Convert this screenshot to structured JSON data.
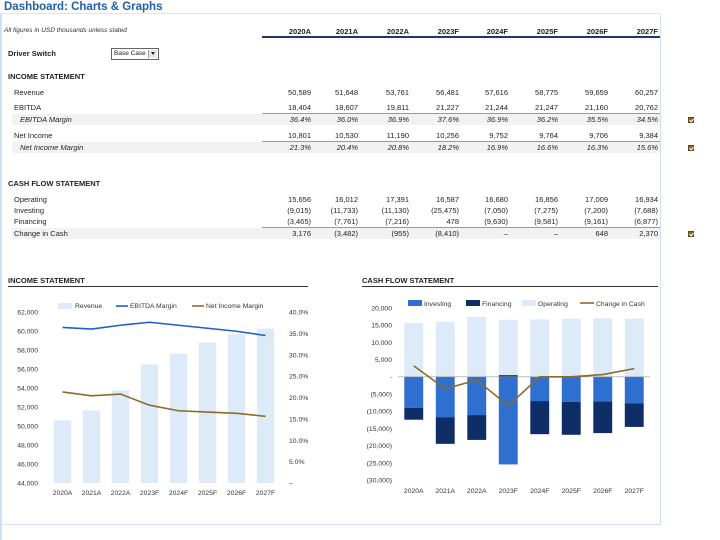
{
  "title": "Dashboard: Charts & Graphs",
  "note": "All figures in USD thousands unless stated",
  "years": [
    "2020A",
    "2021A",
    "2022A",
    "2023F",
    "2024F",
    "2025F",
    "2026F",
    "2027F"
  ],
  "driver": {
    "label": "Driver Switch",
    "value": "Base Case"
  },
  "income": {
    "heading": "INCOME STATEMENT",
    "rows": [
      {
        "label": "Revenue",
        "values": [
          "50,589",
          "51,648",
          "53,761",
          "56,481",
          "57,616",
          "58,775",
          "59,659",
          "60,257"
        ]
      },
      {
        "label": "EBITDA",
        "values": [
          "18,404",
          "18,607",
          "19,811",
          "21,227",
          "21,244",
          "21,247",
          "21,160",
          "20,762"
        ]
      },
      {
        "label": "EBITDA Margin",
        "values": [
          "36.4%",
          "36.0%",
          "36.9%",
          "37.6%",
          "36.9%",
          "36.2%",
          "35.5%",
          "34.5%"
        ]
      },
      {
        "label": "Net Income",
        "values": [
          "10,801",
          "10,530",
          "11,190",
          "10,256",
          "9,752",
          "9,764",
          "9,706",
          "9,384"
        ]
      },
      {
        "label": "Net Income Margin",
        "values": [
          "21.3%",
          "20.4%",
          "20.8%",
          "18.2%",
          "16.9%",
          "16.6%",
          "16.3%",
          "15.6%"
        ]
      }
    ]
  },
  "cashflow": {
    "heading": "CASH FLOW STATEMENT",
    "rows": [
      {
        "label": "Operating",
        "values": [
          "15,656",
          "16,012",
          "17,391",
          "16,587",
          "16,680",
          "16,856",
          "17,009",
          "16,934"
        ]
      },
      {
        "label": "Investing",
        "values": [
          "(9,015)",
          "(11,733)",
          "(11,130)",
          "(25,475)",
          "(7,050)",
          "(7,275)",
          "(7,200)",
          "(7,688)"
        ]
      },
      {
        "label": "Financing",
        "values": [
          "(3,465)",
          "(7,761)",
          "(7,216)",
          "478",
          "(9,630)",
          "(9,581)",
          "(9,161)",
          "(6,877)"
        ]
      },
      {
        "label": "Change in Cash",
        "values": [
          "3,176",
          "(3,482)",
          "(955)",
          "(8,410)",
          "–",
          "–",
          "648",
          "2,370"
        ]
      }
    ]
  },
  "colors": {
    "revenue_bar": "#ddeaf7",
    "ebitda_line": "#1f5fc8",
    "ni_line": "#8b6a2a",
    "operating_bar": "#ddeaf7",
    "investing_bar": "#2f6fd0",
    "financing_bar": "#0f2d66",
    "change_line": "#8b6a2a"
  },
  "chart_data": [
    {
      "type": "bar",
      "title": "INCOME STATEMENT",
      "categories": [
        "2020A",
        "2021A",
        "2022A",
        "2023F",
        "2024F",
        "2025F",
        "2026F",
        "2027F"
      ],
      "series": [
        {
          "name": "Revenue",
          "type": "bar",
          "axis": "left",
          "values": [
            50589,
            51648,
            53761,
            56481,
            57616,
            58775,
            59659,
            60257
          ]
        },
        {
          "name": "EBITDA Margin",
          "type": "line",
          "axis": "right",
          "values": [
            36.4,
            36.0,
            36.9,
            37.6,
            36.9,
            36.2,
            35.5,
            34.5
          ]
        },
        {
          "name": "Net Income Margin",
          "type": "line",
          "axis": "right",
          "values": [
            21.3,
            20.4,
            20.8,
            18.2,
            16.9,
            16.6,
            16.3,
            15.6
          ]
        }
      ],
      "ylim": [
        44000,
        62000
      ],
      "yticks": [
        "62,000",
        "60,000",
        "58,000",
        "56,000",
        "54,000",
        "52,000",
        "50,000",
        "48,000",
        "46,000",
        "44,000"
      ],
      "y2lim": [
        0,
        40
      ],
      "y2ticks": [
        "40.0%",
        "35.0%",
        "30.0%",
        "25.0%",
        "20.0%",
        "15.0%",
        "10.0%",
        "5.0%",
        "–"
      ],
      "legend": "top"
    },
    {
      "type": "bar",
      "title": "CASH FLOW STATEMENT",
      "categories": [
        "2020A",
        "2021A",
        "2022A",
        "2023F",
        "2024F",
        "2025F",
        "2026F",
        "2027F"
      ],
      "series": [
        {
          "name": "Investing",
          "type": "bar",
          "values": [
            -9015,
            -11733,
            -11130,
            -25475,
            -7050,
            -7275,
            -7200,
            -7688
          ]
        },
        {
          "name": "Financing",
          "type": "bar",
          "values": [
            -3465,
            -7761,
            -7216,
            478,
            -9630,
            -9581,
            -9161,
            -6877
          ]
        },
        {
          "name": "Operating",
          "type": "bar",
          "values": [
            15656,
            16012,
            17391,
            16587,
            16680,
            16856,
            17009,
            16934
          ]
        },
        {
          "name": "Change in Cash",
          "type": "line",
          "values": [
            3176,
            -3482,
            -955,
            -8410,
            0,
            0,
            648,
            2370
          ]
        }
      ],
      "ylim": [
        -30000,
        20000
      ],
      "yticks": [
        "20,000",
        "15,000",
        "10,000",
        "5,000",
        "-",
        "(5,000)",
        "(10,000)",
        "(15,000)",
        "(20,000)",
        "(25,000)",
        "(30,000)"
      ],
      "legend": "top"
    }
  ]
}
